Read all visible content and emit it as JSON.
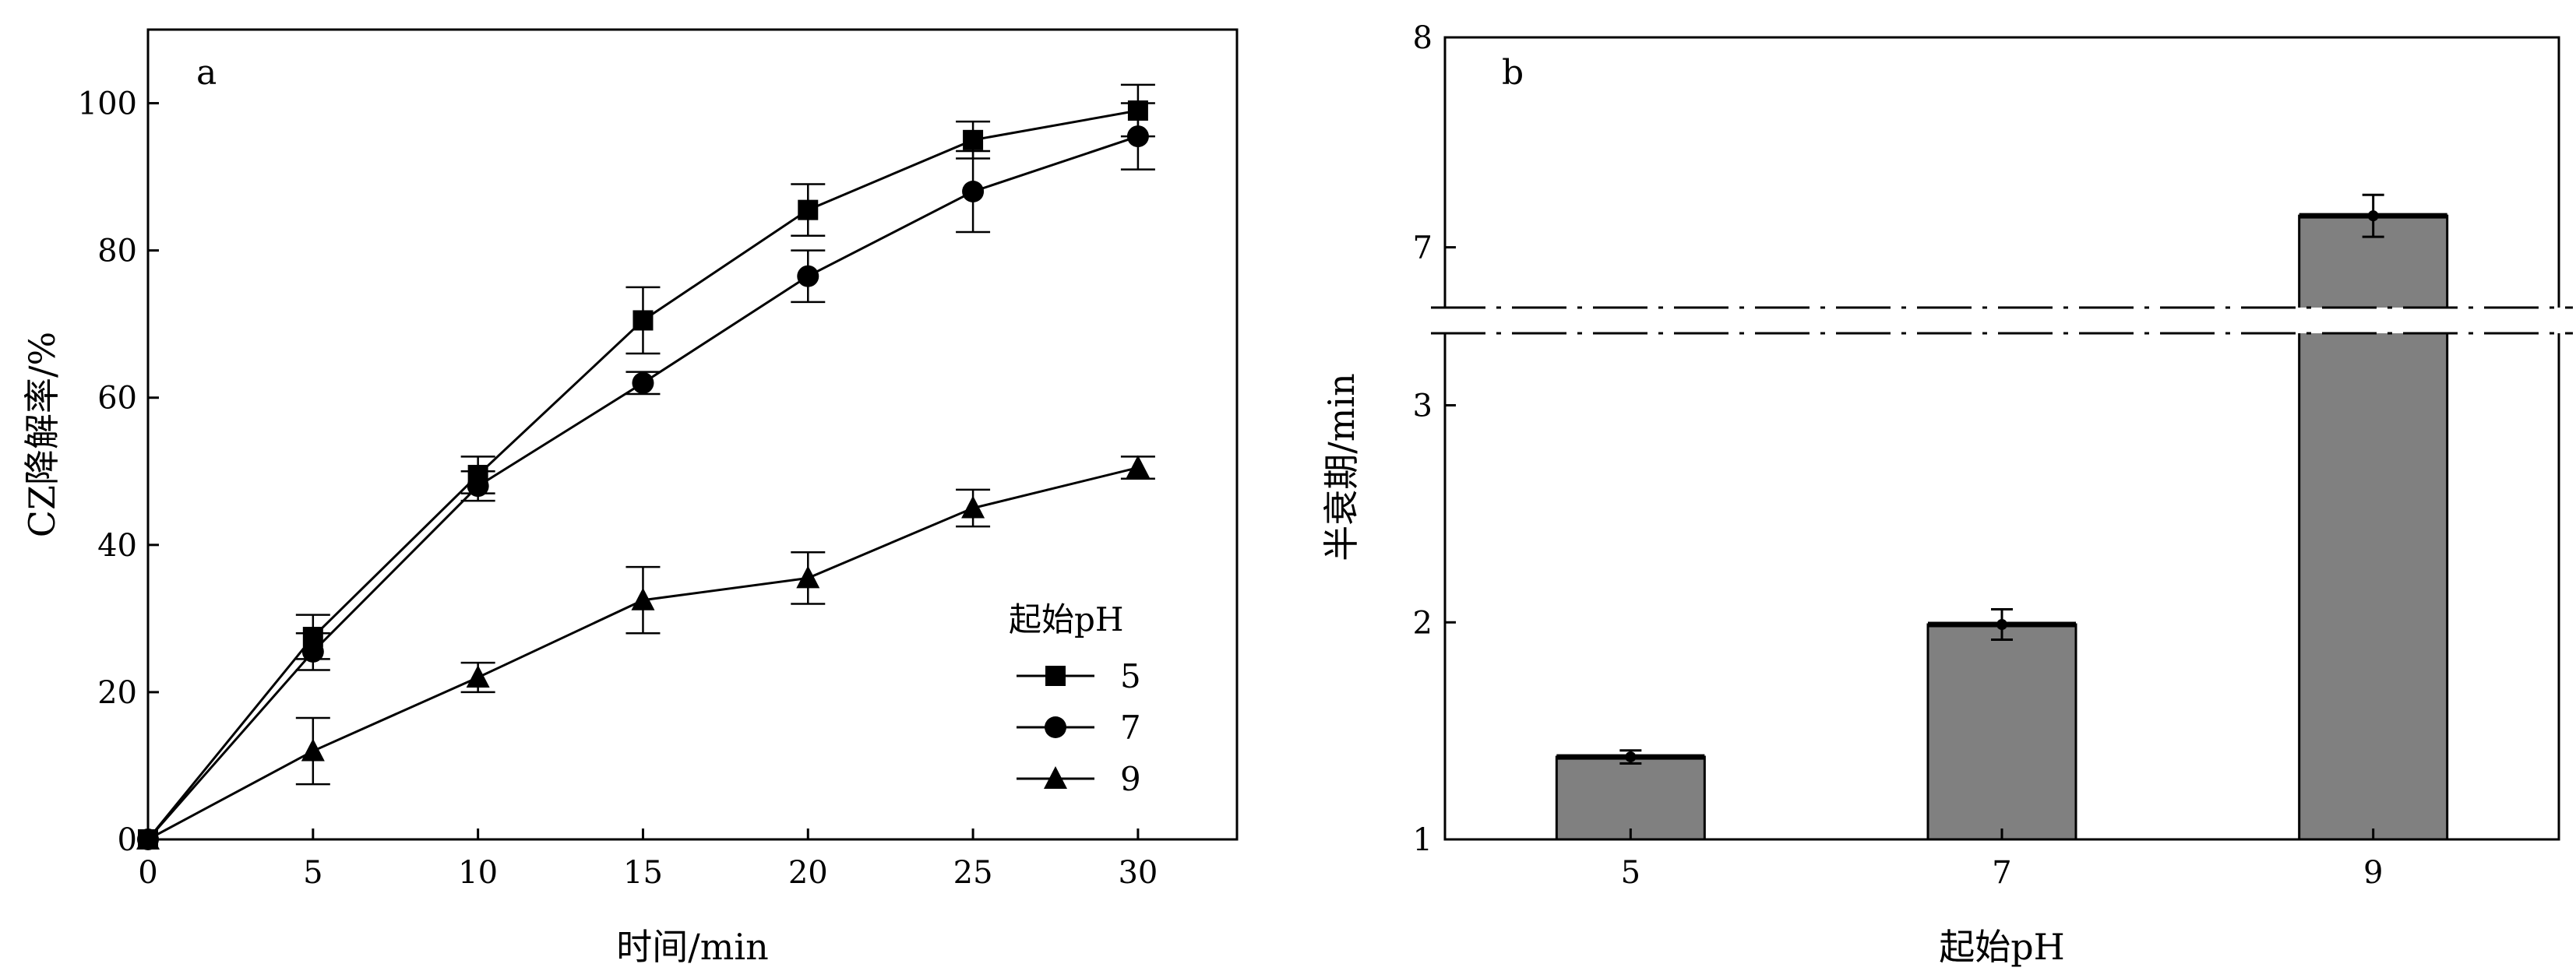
{
  "chart_data": [
    {
      "panel_label": "a",
      "type": "line",
      "xlabel": "时间/min",
      "ylabel": "CZ降解率/%",
      "xlim": [
        0,
        33
      ],
      "ylim": [
        0,
        110
      ],
      "x_ticks": [
        0,
        5,
        10,
        15,
        20,
        25,
        30
      ],
      "y_ticks": [
        0,
        20,
        40,
        60,
        80,
        100
      ],
      "x": [
        0,
        5,
        10,
        15,
        20,
        25,
        30
      ],
      "legend_title": "起始pH",
      "legend_position": "bottom-right",
      "series": [
        {
          "name": "5",
          "marker": "square",
          "values": [
            0,
            27.5,
            49.5,
            70.5,
            85.5,
            95,
            99
          ],
          "errors": [
            0,
            3,
            2.5,
            4.5,
            3.5,
            2.5,
            3.5
          ]
        },
        {
          "name": "7",
          "marker": "circle",
          "values": [
            0,
            25.5,
            48,
            62,
            76.5,
            88,
            95.5
          ],
          "errors": [
            0,
            2.5,
            2,
            1.5,
            3.5,
            5.5,
            4.5
          ]
        },
        {
          "name": "9",
          "marker": "triangle",
          "values": [
            0,
            12,
            22,
            32.5,
            35.5,
            45,
            50.5
          ],
          "errors": [
            0,
            4.5,
            2,
            4.5,
            3.5,
            2.5,
            1.5
          ]
        }
      ],
      "grid": false
    },
    {
      "panel_label": "b",
      "type": "bar",
      "xlabel": "起始pH",
      "ylabel": "半衰期/min",
      "categories": [
        "5",
        "7",
        "9"
      ],
      "values": [
        1.38,
        1.99,
        7.15
      ],
      "errors": [
        0.03,
        0.07,
        0.1
      ],
      "y_ticks": [
        1,
        2,
        3,
        7,
        8
      ],
      "axis_break": {
        "lower_range": [
          1,
          3.4
        ],
        "upper_range": [
          6.75,
          8
        ]
      },
      "bar_color": "#808080",
      "grid": false
    }
  ]
}
